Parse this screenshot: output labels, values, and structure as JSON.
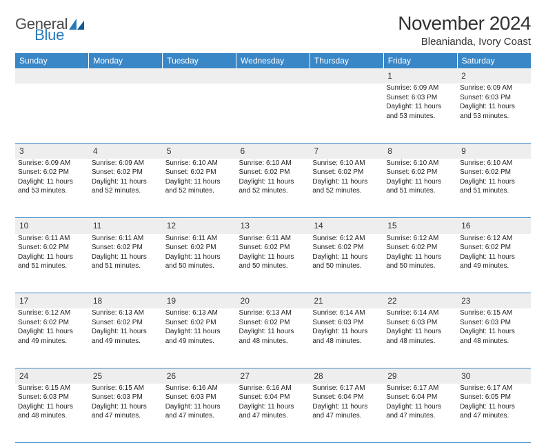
{
  "brand": {
    "general": "General",
    "blue": "Blue"
  },
  "title": "November 2024",
  "location": "Bleanianda, Ivory Coast",
  "colors": {
    "header_bg": "#3a87c7",
    "header_text": "#ffffff",
    "daynum_bg": "#eeeeee",
    "rule": "#3a87c7",
    "brand_blue": "#2a7ab9"
  },
  "weekdays": [
    "Sunday",
    "Monday",
    "Tuesday",
    "Wednesday",
    "Thursday",
    "Friday",
    "Saturday"
  ],
  "weeks": [
    [
      null,
      null,
      null,
      null,
      null,
      {
        "n": "1",
        "sr": "Sunrise: 6:09 AM",
        "ss": "Sunset: 6:03 PM",
        "dl1": "Daylight: 11 hours",
        "dl2": "and 53 minutes."
      },
      {
        "n": "2",
        "sr": "Sunrise: 6:09 AM",
        "ss": "Sunset: 6:03 PM",
        "dl1": "Daylight: 11 hours",
        "dl2": "and 53 minutes."
      }
    ],
    [
      {
        "n": "3",
        "sr": "Sunrise: 6:09 AM",
        "ss": "Sunset: 6:02 PM",
        "dl1": "Daylight: 11 hours",
        "dl2": "and 53 minutes."
      },
      {
        "n": "4",
        "sr": "Sunrise: 6:09 AM",
        "ss": "Sunset: 6:02 PM",
        "dl1": "Daylight: 11 hours",
        "dl2": "and 52 minutes."
      },
      {
        "n": "5",
        "sr": "Sunrise: 6:10 AM",
        "ss": "Sunset: 6:02 PM",
        "dl1": "Daylight: 11 hours",
        "dl2": "and 52 minutes."
      },
      {
        "n": "6",
        "sr": "Sunrise: 6:10 AM",
        "ss": "Sunset: 6:02 PM",
        "dl1": "Daylight: 11 hours",
        "dl2": "and 52 minutes."
      },
      {
        "n": "7",
        "sr": "Sunrise: 6:10 AM",
        "ss": "Sunset: 6:02 PM",
        "dl1": "Daylight: 11 hours",
        "dl2": "and 52 minutes."
      },
      {
        "n": "8",
        "sr": "Sunrise: 6:10 AM",
        "ss": "Sunset: 6:02 PM",
        "dl1": "Daylight: 11 hours",
        "dl2": "and 51 minutes."
      },
      {
        "n": "9",
        "sr": "Sunrise: 6:10 AM",
        "ss": "Sunset: 6:02 PM",
        "dl1": "Daylight: 11 hours",
        "dl2": "and 51 minutes."
      }
    ],
    [
      {
        "n": "10",
        "sr": "Sunrise: 6:11 AM",
        "ss": "Sunset: 6:02 PM",
        "dl1": "Daylight: 11 hours",
        "dl2": "and 51 minutes."
      },
      {
        "n": "11",
        "sr": "Sunrise: 6:11 AM",
        "ss": "Sunset: 6:02 PM",
        "dl1": "Daylight: 11 hours",
        "dl2": "and 51 minutes."
      },
      {
        "n": "12",
        "sr": "Sunrise: 6:11 AM",
        "ss": "Sunset: 6:02 PM",
        "dl1": "Daylight: 11 hours",
        "dl2": "and 50 minutes."
      },
      {
        "n": "13",
        "sr": "Sunrise: 6:11 AM",
        "ss": "Sunset: 6:02 PM",
        "dl1": "Daylight: 11 hours",
        "dl2": "and 50 minutes."
      },
      {
        "n": "14",
        "sr": "Sunrise: 6:12 AM",
        "ss": "Sunset: 6:02 PM",
        "dl1": "Daylight: 11 hours",
        "dl2": "and 50 minutes."
      },
      {
        "n": "15",
        "sr": "Sunrise: 6:12 AM",
        "ss": "Sunset: 6:02 PM",
        "dl1": "Daylight: 11 hours",
        "dl2": "and 50 minutes."
      },
      {
        "n": "16",
        "sr": "Sunrise: 6:12 AM",
        "ss": "Sunset: 6:02 PM",
        "dl1": "Daylight: 11 hours",
        "dl2": "and 49 minutes."
      }
    ],
    [
      {
        "n": "17",
        "sr": "Sunrise: 6:12 AM",
        "ss": "Sunset: 6:02 PM",
        "dl1": "Daylight: 11 hours",
        "dl2": "and 49 minutes."
      },
      {
        "n": "18",
        "sr": "Sunrise: 6:13 AM",
        "ss": "Sunset: 6:02 PM",
        "dl1": "Daylight: 11 hours",
        "dl2": "and 49 minutes."
      },
      {
        "n": "19",
        "sr": "Sunrise: 6:13 AM",
        "ss": "Sunset: 6:02 PM",
        "dl1": "Daylight: 11 hours",
        "dl2": "and 49 minutes."
      },
      {
        "n": "20",
        "sr": "Sunrise: 6:13 AM",
        "ss": "Sunset: 6:02 PM",
        "dl1": "Daylight: 11 hours",
        "dl2": "and 48 minutes."
      },
      {
        "n": "21",
        "sr": "Sunrise: 6:14 AM",
        "ss": "Sunset: 6:03 PM",
        "dl1": "Daylight: 11 hours",
        "dl2": "and 48 minutes."
      },
      {
        "n": "22",
        "sr": "Sunrise: 6:14 AM",
        "ss": "Sunset: 6:03 PM",
        "dl1": "Daylight: 11 hours",
        "dl2": "and 48 minutes."
      },
      {
        "n": "23",
        "sr": "Sunrise: 6:15 AM",
        "ss": "Sunset: 6:03 PM",
        "dl1": "Daylight: 11 hours",
        "dl2": "and 48 minutes."
      }
    ],
    [
      {
        "n": "24",
        "sr": "Sunrise: 6:15 AM",
        "ss": "Sunset: 6:03 PM",
        "dl1": "Daylight: 11 hours",
        "dl2": "and 48 minutes."
      },
      {
        "n": "25",
        "sr": "Sunrise: 6:15 AM",
        "ss": "Sunset: 6:03 PM",
        "dl1": "Daylight: 11 hours",
        "dl2": "and 47 minutes."
      },
      {
        "n": "26",
        "sr": "Sunrise: 6:16 AM",
        "ss": "Sunset: 6:03 PM",
        "dl1": "Daylight: 11 hours",
        "dl2": "and 47 minutes."
      },
      {
        "n": "27",
        "sr": "Sunrise: 6:16 AM",
        "ss": "Sunset: 6:04 PM",
        "dl1": "Daylight: 11 hours",
        "dl2": "and 47 minutes."
      },
      {
        "n": "28",
        "sr": "Sunrise: 6:17 AM",
        "ss": "Sunset: 6:04 PM",
        "dl1": "Daylight: 11 hours",
        "dl2": "and 47 minutes."
      },
      {
        "n": "29",
        "sr": "Sunrise: 6:17 AM",
        "ss": "Sunset: 6:04 PM",
        "dl1": "Daylight: 11 hours",
        "dl2": "and 47 minutes."
      },
      {
        "n": "30",
        "sr": "Sunrise: 6:17 AM",
        "ss": "Sunset: 6:05 PM",
        "dl1": "Daylight: 11 hours",
        "dl2": "and 47 minutes."
      }
    ]
  ]
}
